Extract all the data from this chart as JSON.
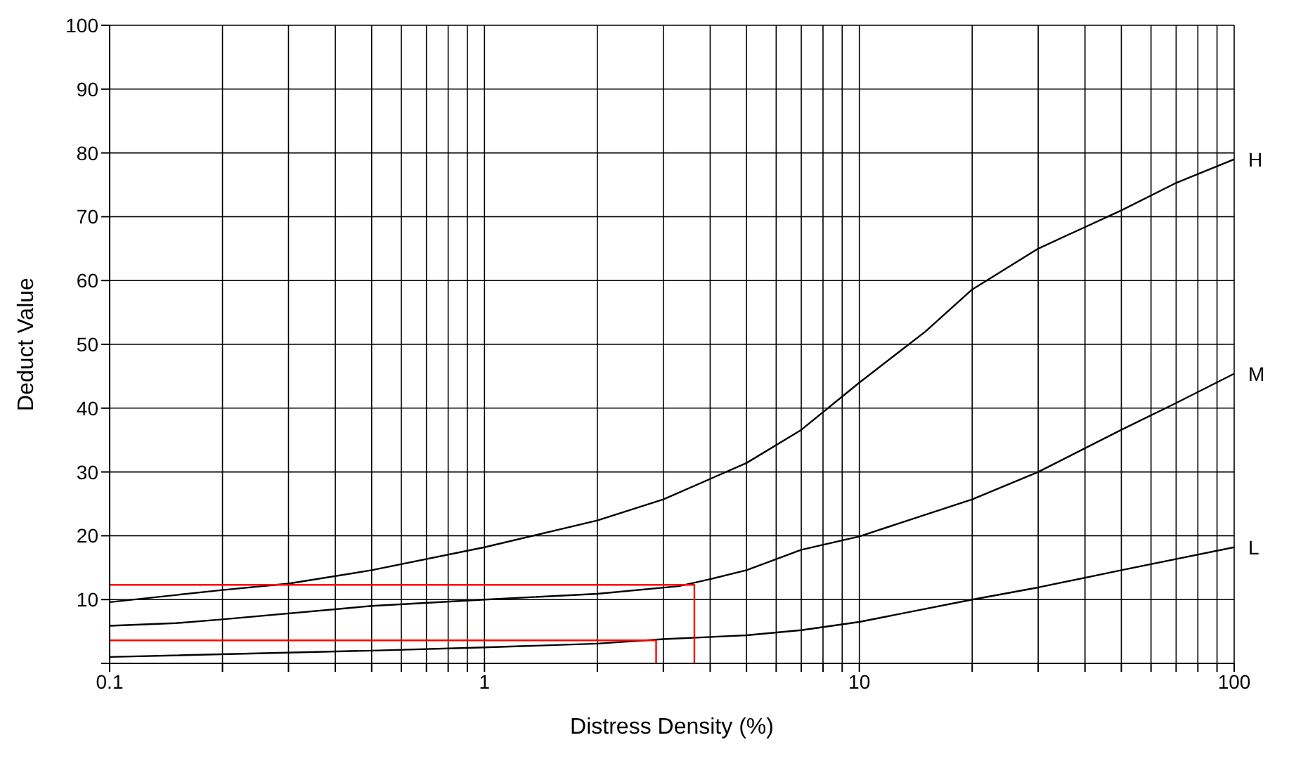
{
  "chart_data": {
    "type": "line",
    "xlabel": "Distress Density (%)",
    "ylabel": "Deduct Value",
    "log": "x",
    "grid": true,
    "marker": "none",
    "line_style": "solid",
    "xlim": [
      0.1,
      100
    ],
    "ylim": [
      0,
      100
    ],
    "xticks": [
      0.1,
      {
        "value": 0.2,
        "label": null
      },
      {
        "value": 0.3,
        "label": null
      },
      {
        "value": 0.4,
        "label": null
      },
      {
        "value": 0.5,
        "label": null
      },
      {
        "value": 0.6,
        "label": null
      },
      {
        "value": 0.7,
        "label": null
      },
      {
        "value": 0.8,
        "label": null
      },
      {
        "value": 0.9,
        "label": null
      },
      1,
      {
        "value": 2,
        "label": null
      },
      {
        "value": 3,
        "label": null
      },
      {
        "value": 4,
        "label": null
      },
      {
        "value": 5,
        "label": null
      },
      {
        "value": 6,
        "label": null
      },
      {
        "value": 7,
        "label": null
      },
      {
        "value": 8,
        "label": null
      },
      {
        "value": 9,
        "label": null
      },
      10,
      {
        "value": 20,
        "label": null
      },
      {
        "value": 30,
        "label": null
      },
      {
        "value": 40,
        "label": null
      },
      {
        "value": 50,
        "label": null
      },
      {
        "value": 60,
        "label": null
      },
      {
        "value": 70,
        "label": null
      },
      {
        "value": 80,
        "label": null
      },
      {
        "value": 90,
        "label": null
      },
      100
    ],
    "yticks": [
      {
        "value": 0,
        "label": null
      },
      10,
      20,
      30,
      40,
      50,
      60,
      70,
      80,
      90,
      100
    ],
    "series": [
      {
        "name": "H",
        "color": "#000000",
        "x": [
          0.1,
          0.2,
          0.3,
          0.5,
          1,
          2,
          3,
          5,
          7,
          10,
          15,
          20,
          30,
          50,
          70,
          100
        ],
        "values": [
          9.6,
          11.5,
          12.5,
          14.6,
          18.2,
          22.4,
          25.7,
          31.4,
          36.6,
          44,
          52,
          58.6,
          65,
          71,
          75.3,
          79
        ]
      },
      {
        "name": "M",
        "color": "#000000",
        "x": [
          0.1,
          0.15,
          0.2,
          0.5,
          1,
          2,
          3.3,
          4,
          5,
          7,
          10,
          20,
          30,
          50,
          70,
          100
        ],
        "values": [
          5.9,
          6.3,
          6.9,
          9,
          10,
          10.9,
          12.1,
          13.2,
          14.6,
          17.8,
          19.9,
          25.7,
          30,
          36.6,
          40.8,
          45.4
        ]
      },
      {
        "name": "L",
        "color": "#000000",
        "x": [
          0.1,
          0.5,
          1,
          2,
          3,
          5,
          7,
          10,
          20,
          30,
          50,
          100
        ],
        "values": [
          1,
          2,
          2.5,
          3.1,
          3.8,
          4.4,
          5.2,
          6.5,
          10,
          11.9,
          14.6,
          18.2
        ]
      },
      {
        "color": "#ff0000",
        "x": [
          0.1,
          3.63,
          3.63
        ],
        "values": [
          12.3,
          12.3,
          0
        ]
      },
      {
        "color": "#ff0000",
        "x": [
          0.1,
          2.87,
          2.87
        ],
        "values": [
          3.6,
          3.6,
          0
        ]
      }
    ]
  }
}
